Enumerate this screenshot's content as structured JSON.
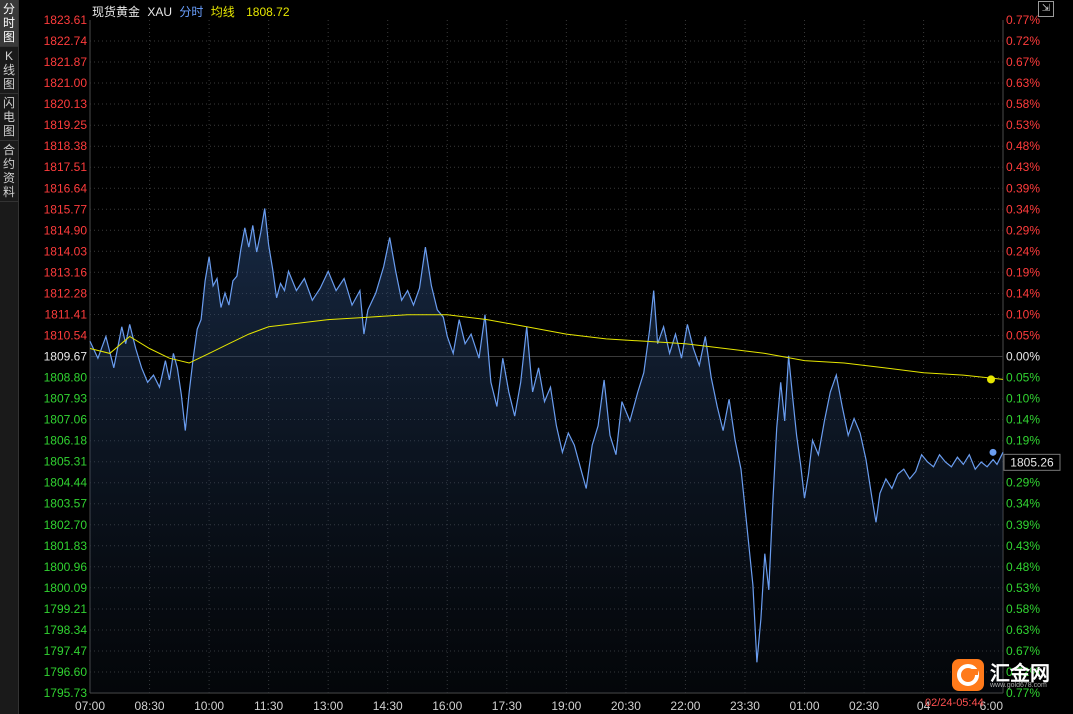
{
  "sidebar": {
    "items": [
      {
        "label": "分时图",
        "active": true
      },
      {
        "label": "K线图",
        "active": false
      },
      {
        "label": "闪电图",
        "active": false
      },
      {
        "label": "合约资料",
        "active": false
      }
    ]
  },
  "header": {
    "name": "现货黄金",
    "code": "XAU",
    "mode": "分时",
    "avg_label": "均线",
    "avg_value": "1808.72"
  },
  "current_price_tag": "1805.26",
  "timestamp": "02/24-05:44",
  "logo": {
    "text": "汇金网",
    "url_text": "www.gold678.com"
  },
  "colors": {
    "price_line": "#6a9df0",
    "avg_line": "#e6e600",
    "up": "#ff3c3c",
    "down": "#31d331",
    "flat": "#e8e8e8",
    "grid": "#3a3a3a"
  },
  "chart_data": {
    "type": "line",
    "base_price": 1809.67,
    "ylim": [
      1795.73,
      1823.61
    ],
    "y_ticks": [
      "1823.61",
      "1822.74",
      "1821.87",
      "1821.00",
      "1820.13",
      "1819.25",
      "1818.38",
      "1817.51",
      "1816.64",
      "1815.77",
      "1814.90",
      "1814.03",
      "1813.16",
      "1812.28",
      "1811.41",
      "1810.54",
      "1809.67",
      "1808.80",
      "1807.93",
      "1807.06",
      "1806.18",
      "1805.31",
      "1804.44",
      "1803.57",
      "1802.70",
      "1801.83",
      "1800.96",
      "1800.09",
      "1799.21",
      "1798.34",
      "1797.47",
      "1796.60",
      "1795.73"
    ],
    "pct_ticks": [
      "0.77%",
      "0.72%",
      "0.67%",
      "0.63%",
      "0.58%",
      "0.53%",
      "0.48%",
      "0.43%",
      "0.39%",
      "0.34%",
      "0.29%",
      "0.24%",
      "0.19%",
      "0.14%",
      "0.10%",
      "0.05%",
      "0.00%",
      "0.05%",
      "0.10%",
      "0.14%",
      "0.19%",
      "0.24%",
      "0.29%",
      "0.34%",
      "0.39%",
      "0.43%",
      "0.48%",
      "0.53%",
      "0.58%",
      "0.63%",
      "0.67%",
      "0.72%",
      "0.77%"
    ],
    "x_ticks": [
      "07:00",
      "08:30",
      "10:00",
      "11:30",
      "13:00",
      "14:30",
      "16:00",
      "17:30",
      "19:00",
      "20:30",
      "22:00",
      "23:30",
      "01:00",
      "02:30",
      "04",
      "6:00"
    ],
    "x_hours": [
      0,
      1.5,
      3,
      4.5,
      6,
      7.5,
      9,
      10.5,
      12,
      13.5,
      15,
      16.5,
      18,
      19.5,
      21,
      23
    ],
    "x_range_hours": [
      0,
      23
    ],
    "series": [
      {
        "role": "price",
        "points": [
          [
            0,
            1810.3
          ],
          [
            0.2,
            1809.6
          ],
          [
            0.4,
            1810.5
          ],
          [
            0.6,
            1809.2
          ],
          [
            0.8,
            1810.9
          ],
          [
            0.9,
            1810.2
          ],
          [
            1.0,
            1811.0
          ],
          [
            1.15,
            1810.0
          ],
          [
            1.3,
            1809.2
          ],
          [
            1.45,
            1808.6
          ],
          [
            1.6,
            1808.9
          ],
          [
            1.75,
            1808.4
          ],
          [
            1.9,
            1809.5
          ],
          [
            2.0,
            1808.7
          ],
          [
            2.1,
            1809.8
          ],
          [
            2.2,
            1809.2
          ],
          [
            2.3,
            1808.1
          ],
          [
            2.4,
            1806.6
          ],
          [
            2.5,
            1808.2
          ],
          [
            2.6,
            1809.6
          ],
          [
            2.7,
            1810.8
          ],
          [
            2.8,
            1811.2
          ],
          [
            2.9,
            1812.8
          ],
          [
            3.0,
            1813.8
          ],
          [
            3.1,
            1812.6
          ],
          [
            3.2,
            1812.9
          ],
          [
            3.3,
            1811.7
          ],
          [
            3.4,
            1812.3
          ],
          [
            3.5,
            1811.8
          ],
          [
            3.6,
            1812.8
          ],
          [
            3.7,
            1813.0
          ],
          [
            3.8,
            1814.1
          ],
          [
            3.9,
            1815.0
          ],
          [
            4.0,
            1814.2
          ],
          [
            4.1,
            1815.1
          ],
          [
            4.2,
            1814.0
          ],
          [
            4.3,
            1814.8
          ],
          [
            4.4,
            1815.8
          ],
          [
            4.5,
            1814.3
          ],
          [
            4.6,
            1813.3
          ],
          [
            4.7,
            1812.1
          ],
          [
            4.8,
            1812.7
          ],
          [
            4.9,
            1812.4
          ],
          [
            5.0,
            1813.2
          ],
          [
            5.2,
            1812.4
          ],
          [
            5.4,
            1812.9
          ],
          [
            5.6,
            1812.0
          ],
          [
            5.8,
            1812.5
          ],
          [
            6.0,
            1813.2
          ],
          [
            6.2,
            1812.4
          ],
          [
            6.4,
            1812.9
          ],
          [
            6.6,
            1811.8
          ],
          [
            6.8,
            1812.4
          ],
          [
            6.9,
            1810.6
          ],
          [
            7.0,
            1811.6
          ],
          [
            7.2,
            1812.3
          ],
          [
            7.4,
            1813.4
          ],
          [
            7.55,
            1814.6
          ],
          [
            7.7,
            1813.2
          ],
          [
            7.85,
            1812.0
          ],
          [
            8.0,
            1812.4
          ],
          [
            8.15,
            1811.8
          ],
          [
            8.3,
            1812.5
          ],
          [
            8.45,
            1814.2
          ],
          [
            8.6,
            1812.6
          ],
          [
            8.75,
            1811.6
          ],
          [
            8.9,
            1811.3
          ],
          [
            9.0,
            1810.5
          ],
          [
            9.15,
            1809.8
          ],
          [
            9.3,
            1811.2
          ],
          [
            9.45,
            1810.2
          ],
          [
            9.6,
            1810.6
          ],
          [
            9.8,
            1809.6
          ],
          [
            9.95,
            1811.4
          ],
          [
            10.1,
            1808.6
          ],
          [
            10.25,
            1807.6
          ],
          [
            10.4,
            1809.6
          ],
          [
            10.55,
            1808.2
          ],
          [
            10.7,
            1807.2
          ],
          [
            10.85,
            1808.6
          ],
          [
            11.0,
            1810.9
          ],
          [
            11.15,
            1808.2
          ],
          [
            11.3,
            1809.2
          ],
          [
            11.45,
            1807.8
          ],
          [
            11.6,
            1808.4
          ],
          [
            11.75,
            1806.8
          ],
          [
            11.9,
            1805.7
          ],
          [
            12.05,
            1806.5
          ],
          [
            12.2,
            1806.0
          ],
          [
            12.35,
            1805.1
          ],
          [
            12.5,
            1804.2
          ],
          [
            12.65,
            1806.0
          ],
          [
            12.8,
            1806.8
          ],
          [
            12.95,
            1808.7
          ],
          [
            13.1,
            1806.4
          ],
          [
            13.25,
            1805.6
          ],
          [
            13.4,
            1807.8
          ],
          [
            13.6,
            1807.0
          ],
          [
            13.8,
            1808.2
          ],
          [
            13.95,
            1809.0
          ],
          [
            14.1,
            1810.8
          ],
          [
            14.2,
            1812.4
          ],
          [
            14.3,
            1810.2
          ],
          [
            14.45,
            1810.9
          ],
          [
            14.6,
            1809.8
          ],
          [
            14.75,
            1810.6
          ],
          [
            14.9,
            1809.6
          ],
          [
            15.05,
            1811.0
          ],
          [
            15.2,
            1810.0
          ],
          [
            15.35,
            1809.3
          ],
          [
            15.5,
            1810.5
          ],
          [
            15.65,
            1808.8
          ],
          [
            15.8,
            1807.6
          ],
          [
            15.95,
            1806.6
          ],
          [
            16.1,
            1807.9
          ],
          [
            16.25,
            1806.2
          ],
          [
            16.4,
            1805.0
          ],
          [
            16.55,
            1802.6
          ],
          [
            16.7,
            1800.2
          ],
          [
            16.8,
            1797.0
          ],
          [
            16.9,
            1798.8
          ],
          [
            17.0,
            1801.5
          ],
          [
            17.1,
            1800.0
          ],
          [
            17.2,
            1803.6
          ],
          [
            17.3,
            1806.7
          ],
          [
            17.4,
            1808.6
          ],
          [
            17.5,
            1807.0
          ],
          [
            17.6,
            1809.7
          ],
          [
            17.7,
            1808.0
          ],
          [
            17.8,
            1806.4
          ],
          [
            17.9,
            1805.2
          ],
          [
            18.0,
            1803.8
          ],
          [
            18.1,
            1804.8
          ],
          [
            18.2,
            1806.2
          ],
          [
            18.35,
            1805.6
          ],
          [
            18.5,
            1807.0
          ],
          [
            18.65,
            1808.2
          ],
          [
            18.8,
            1808.9
          ],
          [
            18.95,
            1807.6
          ],
          [
            19.1,
            1806.4
          ],
          [
            19.25,
            1807.1
          ],
          [
            19.4,
            1806.5
          ],
          [
            19.55,
            1805.4
          ],
          [
            19.7,
            1803.8
          ],
          [
            19.8,
            1802.8
          ],
          [
            19.9,
            1804.0
          ],
          [
            20.05,
            1804.6
          ],
          [
            20.2,
            1804.2
          ],
          [
            20.35,
            1804.8
          ],
          [
            20.5,
            1805.0
          ],
          [
            20.65,
            1804.6
          ],
          [
            20.8,
            1804.9
          ],
          [
            20.95,
            1805.6
          ],
          [
            21.1,
            1805.3
          ],
          [
            21.25,
            1805.1
          ],
          [
            21.4,
            1805.6
          ],
          [
            21.55,
            1805.3
          ],
          [
            21.7,
            1805.1
          ],
          [
            21.85,
            1805.5
          ],
          [
            22.0,
            1805.2
          ],
          [
            22.15,
            1805.6
          ],
          [
            22.3,
            1805.0
          ],
          [
            22.45,
            1805.3
          ],
          [
            22.6,
            1805.1
          ],
          [
            22.75,
            1805.4
          ],
          [
            22.85,
            1805.2
          ],
          [
            23.0,
            1805.7
          ]
        ]
      },
      {
        "role": "average",
        "points": [
          [
            0,
            1810.0
          ],
          [
            0.5,
            1809.8
          ],
          [
            1.0,
            1810.5
          ],
          [
            1.5,
            1810.0
          ],
          [
            2.0,
            1809.6
          ],
          [
            2.5,
            1809.4
          ],
          [
            3.0,
            1809.8
          ],
          [
            3.5,
            1810.2
          ],
          [
            4.0,
            1810.6
          ],
          [
            4.5,
            1810.9
          ],
          [
            5.0,
            1811.0
          ],
          [
            6.0,
            1811.2
          ],
          [
            7.0,
            1811.3
          ],
          [
            8.0,
            1811.4
          ],
          [
            9.0,
            1811.4
          ],
          [
            10.0,
            1811.2
          ],
          [
            11.0,
            1810.9
          ],
          [
            12.0,
            1810.6
          ],
          [
            13.0,
            1810.4
          ],
          [
            14.0,
            1810.3
          ],
          [
            15.0,
            1810.2
          ],
          [
            16.0,
            1810.0
          ],
          [
            17.0,
            1809.8
          ],
          [
            18.0,
            1809.5
          ],
          [
            19.0,
            1809.4
          ],
          [
            20.0,
            1809.2
          ],
          [
            21.0,
            1809.0
          ],
          [
            22.0,
            1808.9
          ],
          [
            23.0,
            1808.72
          ]
        ]
      }
    ]
  }
}
